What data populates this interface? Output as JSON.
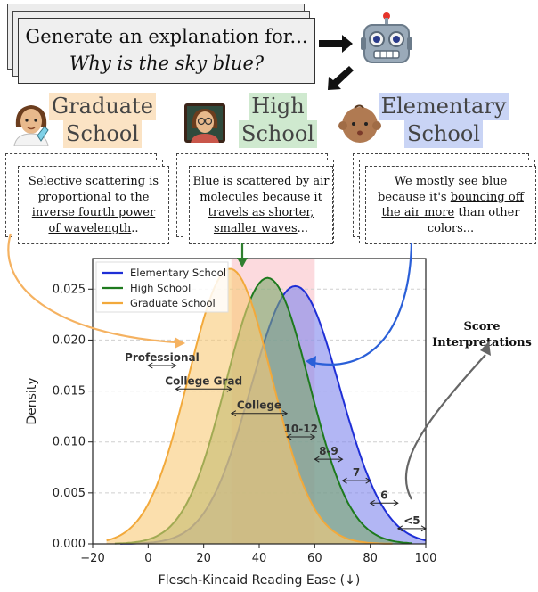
{
  "prompt": {
    "line1": "Generate an explanation for...",
    "line2": "Why is the sky blue?"
  },
  "levels": [
    {
      "line1": "Graduate",
      "line2": "School",
      "color": "#fbe3c4",
      "icon": "scientist-emoji-icon"
    },
    {
      "line1": "High",
      "line2": "School",
      "color": "#cfe9cf",
      "icon": "teacher-emoji-icon"
    },
    {
      "line1": "Elementary",
      "line2": "School",
      "color": "#c9d4f5",
      "icon": "baby-emoji-icon"
    }
  ],
  "explanations": {
    "graduate": {
      "a": "Selective scattering is",
      "b": "proportional to the",
      "c": "inverse fourth power",
      "d": "of wavelength",
      "e": ".."
    },
    "high": {
      "a": "Blue is scattered by air",
      "b": "molecules because it",
      "c": "travels as shorter,",
      "d": "smaller waves",
      "e": "..."
    },
    "elementary": {
      "a": "We mostly see blue",
      "b": "because it's ",
      "c": "bouncing off",
      "d": "the air more",
      "e": " than other",
      "f": "colors..."
    }
  },
  "score_interpretations": {
    "line1": "Score",
    "line2": "Interpretations"
  },
  "chart_data": {
    "type": "area",
    "xlabel": "Flesch-Kincaid Reading Ease (↓)",
    "ylabel": "Density",
    "xlim": [
      -20,
      100
    ],
    "ylim": [
      0,
      0.028
    ],
    "xticks": [
      -20,
      0,
      20,
      40,
      60,
      80,
      100
    ],
    "yticks": [
      0.0,
      0.005,
      0.01,
      0.015,
      0.02,
      0.025
    ],
    "grid": "horizontal dashed",
    "legend_position": "top-left",
    "highlight_band": [
      30,
      60
    ],
    "series": [
      {
        "name": "Elementary School",
        "color": "#1f2fd6",
        "fill": "#7f86ec",
        "mean": 53,
        "sd": 16,
        "peak": 0.0253,
        "range": [
          -10,
          100
        ]
      },
      {
        "name": "High School",
        "color": "#1e7a1e",
        "fill": "#7aa86a",
        "mean": 43,
        "sd": 15,
        "peak": 0.0261,
        "range": [
          -12,
          95
        ]
      },
      {
        "name": "Graduate School",
        "color": "#f2a93b",
        "fill": "#f8c977",
        "mean": 29.5,
        "sd": 15,
        "peak": 0.027,
        "range": [
          -15,
          88
        ]
      }
    ],
    "annotations": [
      {
        "text": "Professional",
        "x0": 0,
        "x1": 10,
        "y": 0.0175
      },
      {
        "text": "College Grad",
        "x0": 10,
        "x1": 30,
        "y": 0.0152
      },
      {
        "text": "College",
        "x0": 30,
        "x1": 50,
        "y": 0.0128
      },
      {
        "text": "10-12",
        "x0": 50,
        "x1": 60,
        "y": 0.0105
      },
      {
        "text": "8-9",
        "x0": 60,
        "x1": 70,
        "y": 0.0083
      },
      {
        "text": "7",
        "x0": 70,
        "x1": 80,
        "y": 0.0062
      },
      {
        "text": "6",
        "x0": 80,
        "x1": 90,
        "y": 0.004
      },
      {
        "text": "<5",
        "x0": 90,
        "x1": 100,
        "y": 0.0015
      }
    ]
  }
}
